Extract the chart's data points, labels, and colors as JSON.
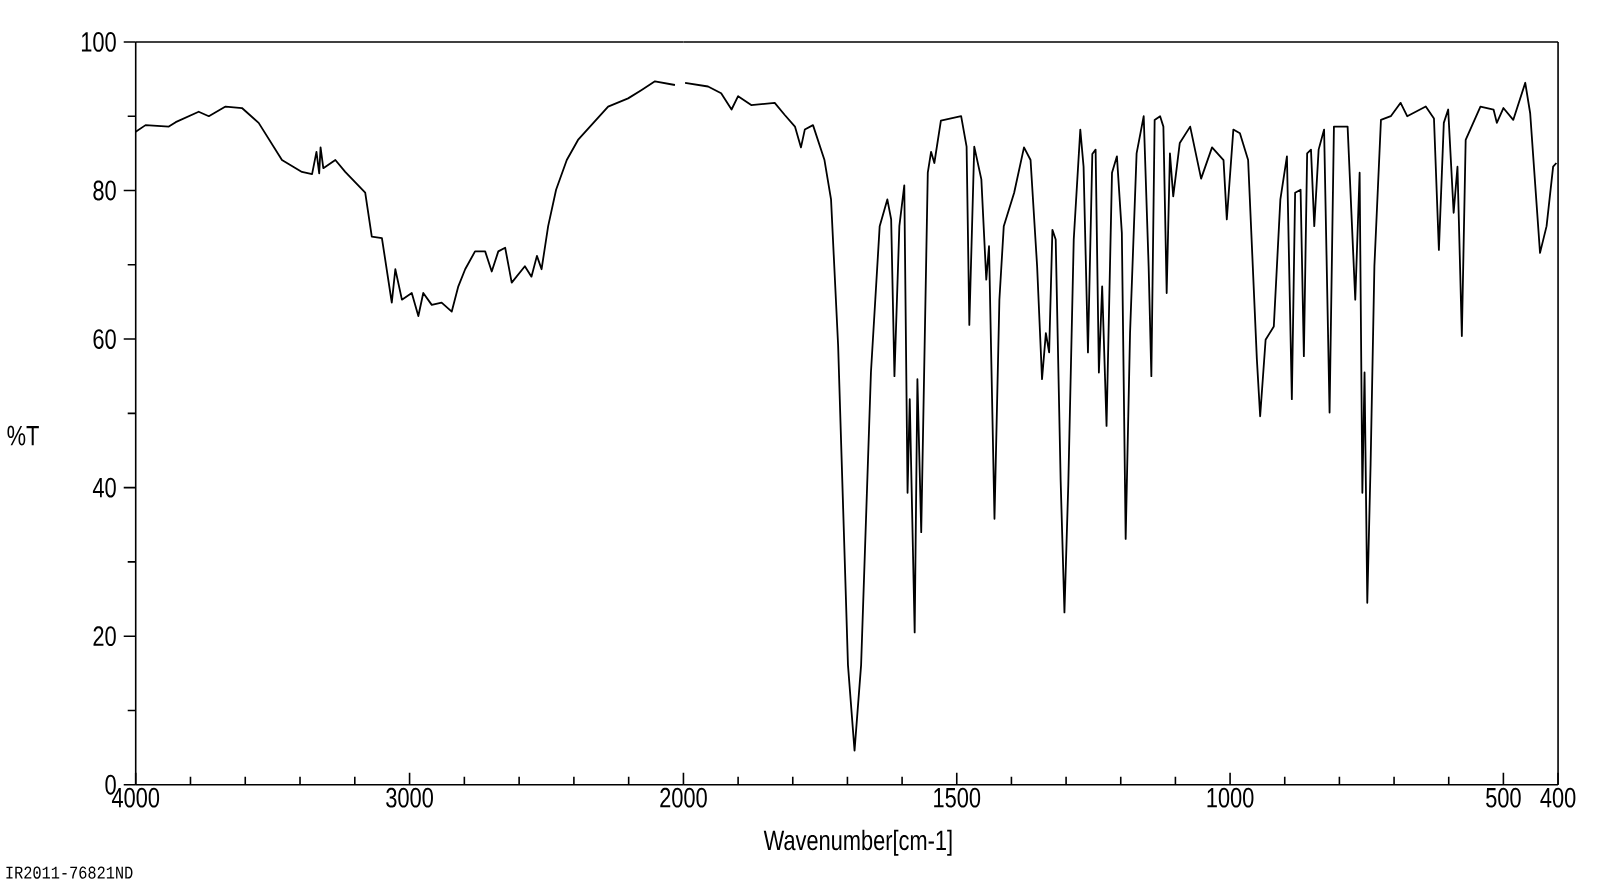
{
  "chart_data": [
    {
      "type": "line",
      "ylabel": "%T",
      "annotations": [
        "IR2011-76821ND"
      ],
      "xlim": [
        4000,
        2000
      ],
      "ylim": [
        0,
        100
      ],
      "xticks": [
        4000,
        {
          "value": 3800,
          "label": null
        },
        {
          "value": 3600,
          "label": null
        },
        {
          "value": 3400,
          "label": null
        },
        {
          "value": 3200,
          "label": null
        },
        3000,
        {
          "value": 2800,
          "label": null
        },
        {
          "value": 2600,
          "label": null
        },
        {
          "value": 2400,
          "label": null
        },
        {
          "value": 2200,
          "label": null
        }
      ],
      "yticks": [
        0,
        {
          "value": 10,
          "label": null
        },
        20,
        {
          "value": 30,
          "label": null
        },
        40,
        {
          "value": 50,
          "label": null
        },
        60,
        {
          "value": 70,
          "label": null
        },
        80,
        {
          "value": 90,
          "label": null
        },
        100
      ],
      "series": [
        {
          "color": "#000000",
          "x": [
            4000,
            3964,
            3879,
            3854,
            3770,
            3733,
            3672,
            3612,
            3551,
            3466,
            3393,
            3356,
            3340,
            3330,
            3325,
            3315,
            3271,
            3235,
            3162,
            3138,
            3101,
            3065,
            3052,
            3028,
            2992,
            2968,
            2950,
            2919,
            2883,
            2846,
            2822,
            2797,
            2761,
            2724,
            2700,
            2676,
            2651,
            2627,
            2579,
            2555,
            2535,
            2518,
            2494,
            2465,
            2426,
            2385,
            2275,
            2202,
            2154,
            2104,
            2031
          ],
          "values": [
            87.9,
            88.8,
            88.6,
            89.2,
            90.6,
            90.0,
            91.3,
            91.1,
            89.1,
            84.1,
            82.5,
            82.2,
            85.2,
            82.3,
            85.8,
            83.0,
            84.1,
            82.5,
            79.7,
            73.8,
            73.6,
            64.9,
            69.4,
            65.3,
            66.2,
            63.1,
            66.2,
            64.6,
            64.9,
            63.7,
            67.1,
            69.4,
            71.8,
            71.8,
            69.1,
            71.8,
            72.3,
            67.6,
            69.8,
            68.4,
            71.2,
            69.4,
            75.2,
            80.1,
            84.1,
            86.8,
            91.3,
            92.4,
            93.5,
            94.7,
            94.2
          ]
        }
      ]
    },
    {
      "type": "line",
      "xlabel": "Wavenumber[cm-1]",
      "xlim": [
        2000,
        400
      ],
      "ylim": [
        0,
        100
      ],
      "xticks": [
        2000,
        {
          "value": 1900,
          "label": null
        },
        {
          "value": 1800,
          "label": null
        },
        {
          "value": 1700,
          "label": null
        },
        {
          "value": 1600,
          "label": null
        },
        1500,
        {
          "value": 1400,
          "label": null
        },
        {
          "value": 1300,
          "label": null
        },
        {
          "value": 1200,
          "label": null
        },
        {
          "value": 1100,
          "label": null
        },
        1000,
        {
          "value": 900,
          "label": null
        },
        {
          "value": 800,
          "label": null
        },
        {
          "value": 700,
          "label": null
        },
        {
          "value": 600,
          "label": null
        },
        500,
        400
      ],
      "series": [
        {
          "color": "#000000",
          "x": [
            1997,
            1955,
            1931,
            1912,
            1900,
            1876,
            1833,
            1815,
            1796,
            1785,
            1778,
            1763,
            1742,
            1730,
            1717,
            1699,
            1687,
            1675,
            1657,
            1641,
            1627,
            1620,
            1614,
            1605,
            1596,
            1590,
            1586,
            1577,
            1572,
            1565,
            1553,
            1547,
            1541,
            1529,
            1492,
            1482,
            1477,
            1468,
            1455,
            1446,
            1441,
            1431,
            1422,
            1414,
            1395,
            1377,
            1365,
            1353,
            1344,
            1337,
            1331,
            1325,
            1319,
            1310,
            1303,
            1296,
            1286,
            1274,
            1268,
            1260,
            1252,
            1246,
            1240,
            1234,
            1226,
            1216,
            1207,
            1198,
            1191,
            1183,
            1171,
            1158,
            1149,
            1144,
            1138,
            1128,
            1122,
            1116,
            1110,
            1104,
            1092,
            1073,
            1053,
            1033,
            1012,
            1006,
            994,
            982,
            967,
            951,
            945,
            935,
            920,
            908,
            896,
            887,
            881,
            871,
            865,
            859,
            852,
            846,
            838,
            828,
            818,
            810,
            797,
            785,
            771,
            763,
            758,
            754,
            749,
            743,
            736,
            724,
            706,
            688,
            676,
            642,
            627,
            618,
            609,
            601,
            591,
            584,
            576,
            569,
            542,
            518,
            512,
            500,
            482,
            460,
            451,
            433,
            421,
            409,
            403
          ],
          "values": [
            94.5,
            94.0,
            93.1,
            90.9,
            92.7,
            91.5,
            91.8,
            90.2,
            88.6,
            85.8,
            88.2,
            88.8,
            84.1,
            78.8,
            59.1,
            16.1,
            4.6,
            16.1,
            55.5,
            75.2,
            78.8,
            76.1,
            55.0,
            75.2,
            80.7,
            39.3,
            51.9,
            20.5,
            54.6,
            34.0,
            82.4,
            85.2,
            83.7,
            89.4,
            90.0,
            85.9,
            61.9,
            85.9,
            81.5,
            68.0,
            72.5,
            35.8,
            65.3,
            75.2,
            79.7,
            85.8,
            84.1,
            69.8,
            54.6,
            60.8,
            58.2,
            74.7,
            73.4,
            41.1,
            23.2,
            40.3,
            73.4,
            88.2,
            83.2,
            58.2,
            84.9,
            85.5,
            55.5,
            67.1,
            48.3,
            82.4,
            84.6,
            74.3,
            33.1,
            60.8,
            85.0,
            90.0,
            69.8,
            55.0,
            89.5,
            90.0,
            88.6,
            66.2,
            85.0,
            79.2,
            86.4,
            88.6,
            81.6,
            85.8,
            84.1,
            76.1,
            88.2,
            87.7,
            84.1,
            57.3,
            49.6,
            59.9,
            61.7,
            78.8,
            84.6,
            51.9,
            79.7,
            80.1,
            57.7,
            85.0,
            85.5,
            75.2,
            85.5,
            88.2,
            50.1,
            88.6,
            88.6,
            88.6,
            65.3,
            82.4,
            39.3,
            55.5,
            24.5,
            42.9,
            69.8,
            89.5,
            90.0,
            91.8,
            90.0,
            91.3,
            89.7,
            72.0,
            89.1,
            90.9,
            77.0,
            83.2,
            60.4,
            86.8,
            91.3,
            90.9,
            89.1,
            91.1,
            89.5,
            94.5,
            90.4,
            71.6,
            75.2,
            83.2,
            83.7
          ]
        }
      ]
    }
  ]
}
